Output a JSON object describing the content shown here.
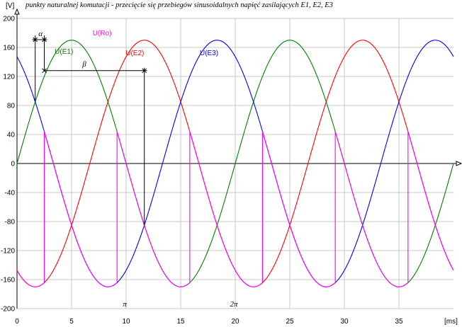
{
  "chart_data": {
    "type": "line",
    "title": "punkty naturalnej komutacji - przecięcie się przebiegów sinusoidalnych napięć zasilających E1, E2, E3",
    "xlabel": "[ms]",
    "ylabel": "[V]",
    "xlim": [
      0,
      40
    ],
    "ylim": [
      -200,
      200
    ],
    "x_ticks": [
      0,
      5,
      10,
      15,
      20,
      25,
      30,
      35
    ],
    "y_ticks": [
      200,
      160,
      120,
      80,
      40,
      0,
      -40,
      -80,
      -120,
      -160,
      -200
    ],
    "grid": true,
    "amplitude": 170,
    "period_ms": 20,
    "firing_delay_ms": 0.833,
    "series": [
      {
        "name": "U(E1)",
        "color": "#008000",
        "phase_deg": 0
      },
      {
        "name": "U(E2)",
        "color": "#ff0000",
        "phase_deg": -120
      },
      {
        "name": "U(E3)",
        "color": "#0000ff",
        "phase_deg": 120
      },
      {
        "name": "U(Ro)",
        "color": "#ff00ff",
        "phase_deg": null
      }
    ],
    "annotations": [
      {
        "text": "α",
        "x_from": 1.667,
        "x_to": 2.5
      },
      {
        "text": "β",
        "x_from": 2.5,
        "x_to": 11.667
      },
      {
        "text": "π",
        "x": 10
      },
      {
        "text": "2π",
        "x": 20
      }
    ]
  }
}
